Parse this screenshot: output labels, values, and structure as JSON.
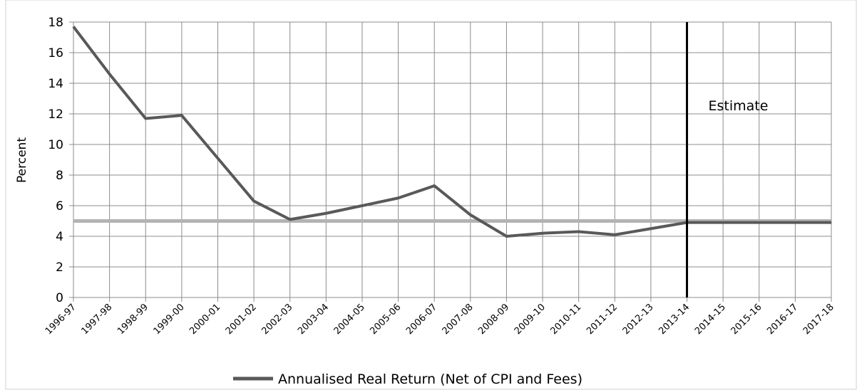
{
  "chart_data": {
    "type": "line",
    "y_label": "Percent",
    "categories": [
      "1996-97",
      "1997-98",
      "1998-99",
      "1999-00",
      "2000-01",
      "2001-02",
      "2002-03",
      "2003-04",
      "2004-05",
      "2005-06",
      "2006-07",
      "2007-08",
      "2008-09",
      "2009-10",
      "2010-11",
      "2011-12",
      "2012-13",
      "2013-14",
      "2014-15",
      "2015-16",
      "2016-17",
      "2017-18"
    ],
    "series": [
      {
        "name": "Annualised Real Return (Net of CPI and Fees)",
        "color": "#595959",
        "values": [
          17.7,
          14.6,
          11.7,
          11.9,
          9.1,
          6.3,
          5.1,
          5.5,
          6.0,
          6.5,
          7.3,
          5.4,
          4.0,
          4.2,
          4.3,
          4.1,
          4.5,
          4.9,
          4.9,
          4.9,
          4.9,
          4.9
        ]
      }
    ],
    "reference_line": {
      "value": 5,
      "color": "#b3b3b3"
    },
    "divider": {
      "category": "2013-14",
      "label": "Estimate",
      "color": "#000000"
    },
    "ylim": [
      0,
      18
    ],
    "yticks": [
      0,
      2,
      4,
      6,
      8,
      10,
      12,
      14,
      16,
      18
    ],
    "grid": true,
    "legend": "bottom"
  }
}
